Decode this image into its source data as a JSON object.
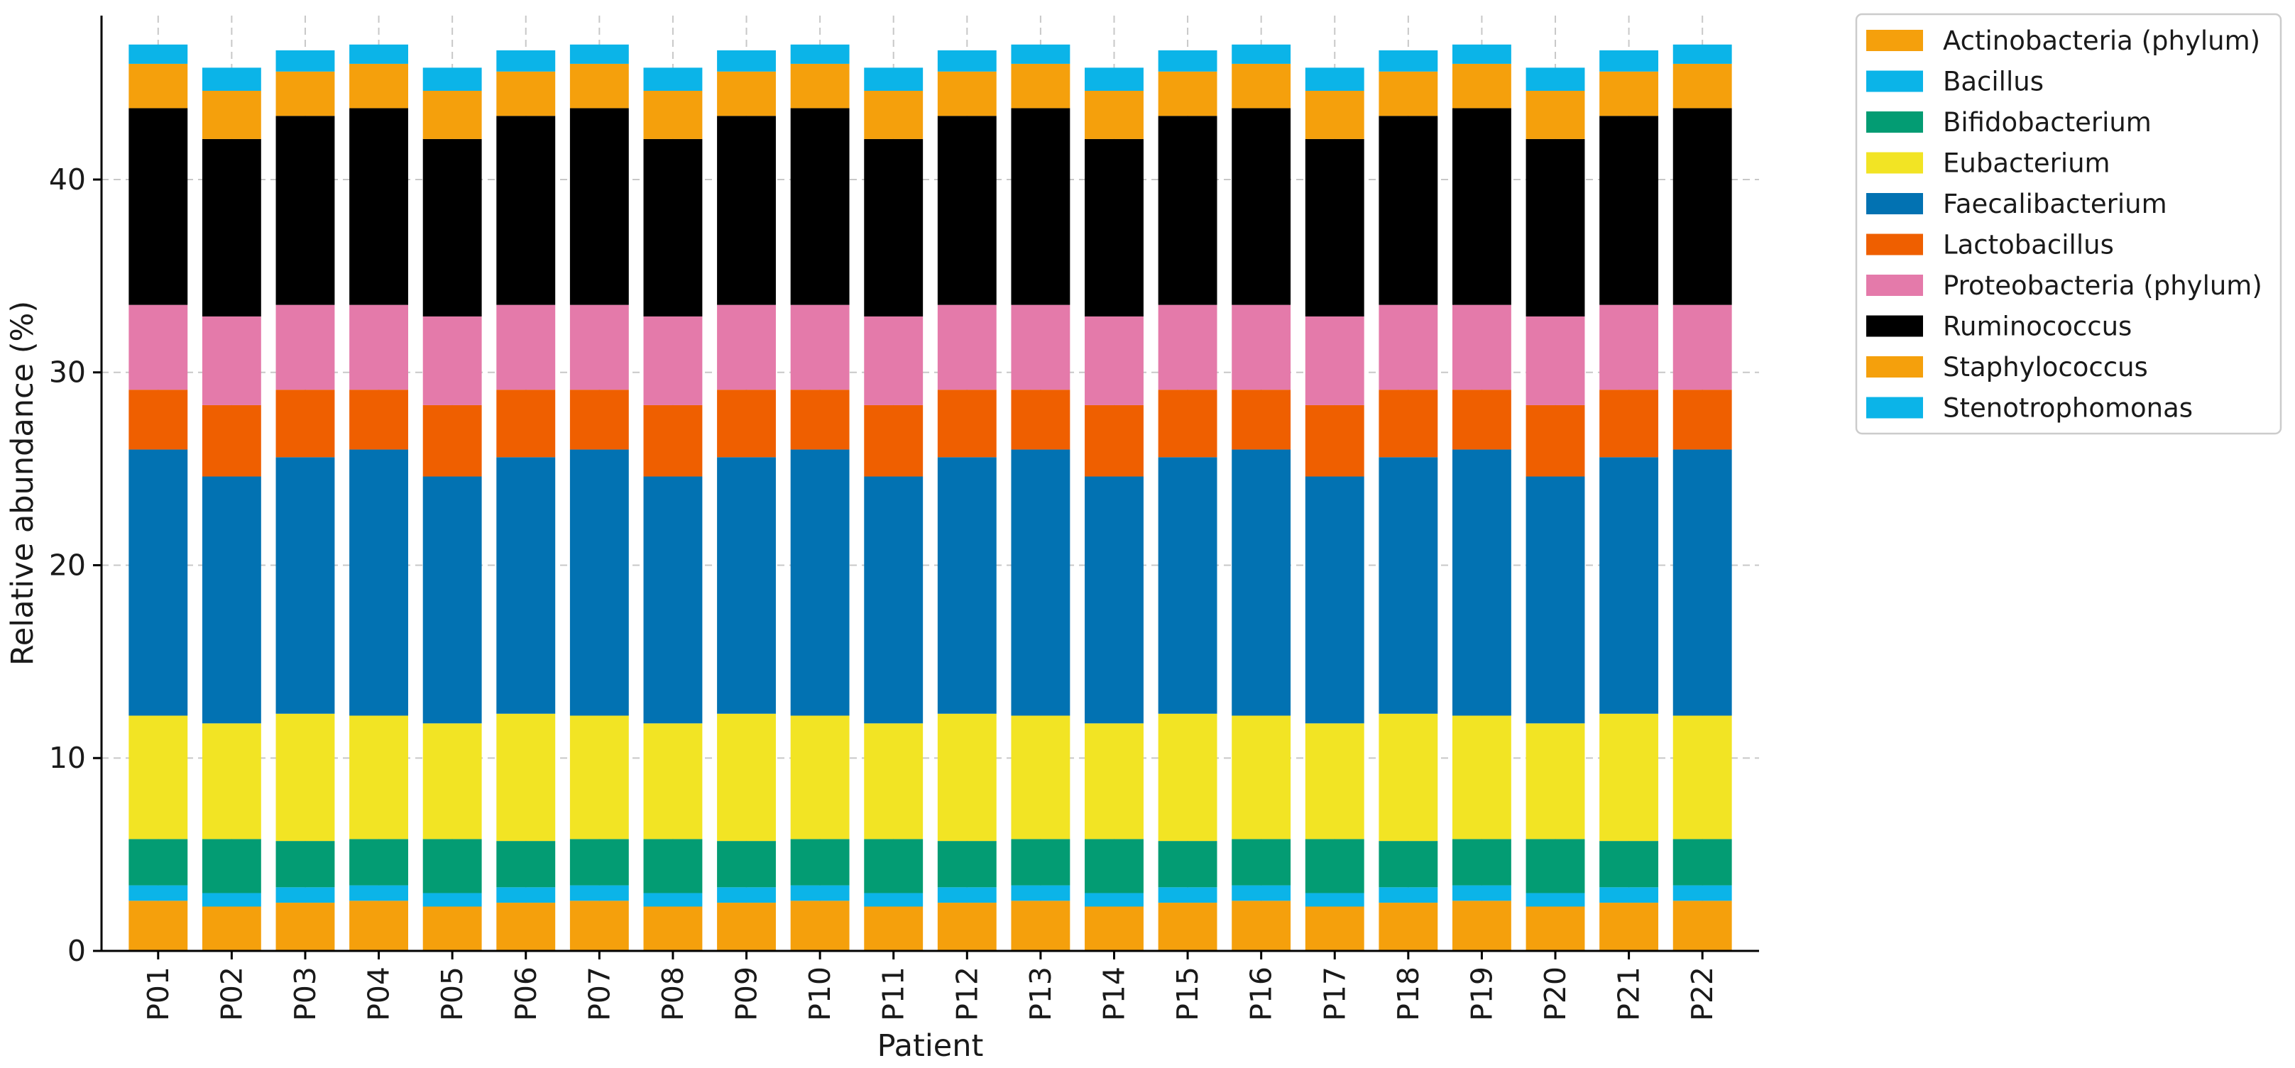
{
  "chart_data": {
    "type": "bar",
    "stacked": true,
    "xlabel": "Patient",
    "ylabel": "Relative abundance (%)",
    "ylim": [
      0,
      48.5
    ],
    "yticks": [
      0,
      10,
      20,
      30,
      40
    ],
    "grid": true,
    "legend_position": "outside-top-right",
    "categories": [
      "P01",
      "P02",
      "P03",
      "P04",
      "P05",
      "P06",
      "P07",
      "P08",
      "P09",
      "P10",
      "P11",
      "P12",
      "P13",
      "P14",
      "P15",
      "P16",
      "P17",
      "P18",
      "P19",
      "P20",
      "P21",
      "P22"
    ],
    "series": [
      {
        "name": "Actinobacteria (phylum)",
        "color": "#F5A00C",
        "values": [
          2.6,
          2.3,
          2.5,
          2.6,
          2.3,
          2.5,
          2.6,
          2.3,
          2.5,
          2.6,
          2.3,
          2.5,
          2.6,
          2.3,
          2.5,
          2.6,
          2.3,
          2.5,
          2.6,
          2.3,
          2.5,
          2.6
        ]
      },
      {
        "name": "Bacillus",
        "color": "#0BB4E8",
        "values": [
          0.8,
          0.7,
          0.8,
          0.8,
          0.7,
          0.8,
          0.8,
          0.7,
          0.8,
          0.8,
          0.7,
          0.8,
          0.8,
          0.7,
          0.8,
          0.8,
          0.7,
          0.8,
          0.8,
          0.7,
          0.8,
          0.8
        ]
      },
      {
        "name": "Bifidobacterium",
        "color": "#039C73",
        "values": [
          2.4,
          2.8,
          2.4,
          2.4,
          2.8,
          2.4,
          2.4,
          2.8,
          2.4,
          2.4,
          2.8,
          2.4,
          2.4,
          2.8,
          2.4,
          2.4,
          2.8,
          2.4,
          2.4,
          2.8,
          2.4,
          2.4
        ]
      },
      {
        "name": "Eubacterium",
        "color": "#F2E424",
        "values": [
          6.4,
          6.0,
          6.6,
          6.4,
          6.0,
          6.6,
          6.4,
          6.0,
          6.6,
          6.4,
          6.0,
          6.6,
          6.4,
          6.0,
          6.6,
          6.4,
          6.0,
          6.6,
          6.4,
          6.0,
          6.6,
          6.4
        ]
      },
      {
        "name": "Faecalibacterium",
        "color": "#0272B2",
        "values": [
          13.8,
          12.8,
          13.3,
          13.8,
          12.8,
          13.3,
          13.8,
          12.8,
          13.3,
          13.8,
          12.8,
          13.3,
          13.8,
          12.8,
          13.3,
          13.8,
          12.8,
          13.3,
          13.8,
          12.8,
          13.3,
          13.8
        ]
      },
      {
        "name": "Lactobacillus",
        "color": "#EF5F00",
        "values": [
          3.1,
          3.7,
          3.5,
          3.1,
          3.7,
          3.5,
          3.1,
          3.7,
          3.5,
          3.1,
          3.7,
          3.5,
          3.1,
          3.7,
          3.5,
          3.1,
          3.7,
          3.5,
          3.1,
          3.7,
          3.5,
          3.1
        ]
      },
      {
        "name": "Proteobacteria (phylum)",
        "color": "#E47AAA",
        "values": [
          4.4,
          4.6,
          4.4,
          4.4,
          4.6,
          4.4,
          4.4,
          4.6,
          4.4,
          4.4,
          4.6,
          4.4,
          4.4,
          4.6,
          4.4,
          4.4,
          4.6,
          4.4,
          4.4,
          4.6,
          4.4,
          4.4
        ]
      },
      {
        "name": "Ruminococcus",
        "color": "#000000",
        "values": [
          10.2,
          9.2,
          9.8,
          10.2,
          9.2,
          9.8,
          10.2,
          9.2,
          9.8,
          10.2,
          9.2,
          9.8,
          10.2,
          9.2,
          9.8,
          10.2,
          9.2,
          9.8,
          10.2,
          9.2,
          9.8,
          10.2
        ]
      },
      {
        "name": "Staphylococcus",
        "color": "#F5A00C",
        "values": [
          2.3,
          2.5,
          2.3,
          2.3,
          2.5,
          2.3,
          2.3,
          2.5,
          2.3,
          2.3,
          2.5,
          2.3,
          2.3,
          2.5,
          2.3,
          2.3,
          2.5,
          2.3,
          2.3,
          2.5,
          2.3,
          2.3
        ]
      },
      {
        "name": "Stenotrophomonas",
        "color": "#0BB4E8",
        "values": [
          1.0,
          1.2,
          1.1,
          1.0,
          1.2,
          1.1,
          1.0,
          1.2,
          1.1,
          1.0,
          1.2,
          1.1,
          1.0,
          1.2,
          1.1,
          1.0,
          1.2,
          1.1,
          1.0,
          1.2,
          1.1,
          1.0
        ]
      }
    ]
  }
}
